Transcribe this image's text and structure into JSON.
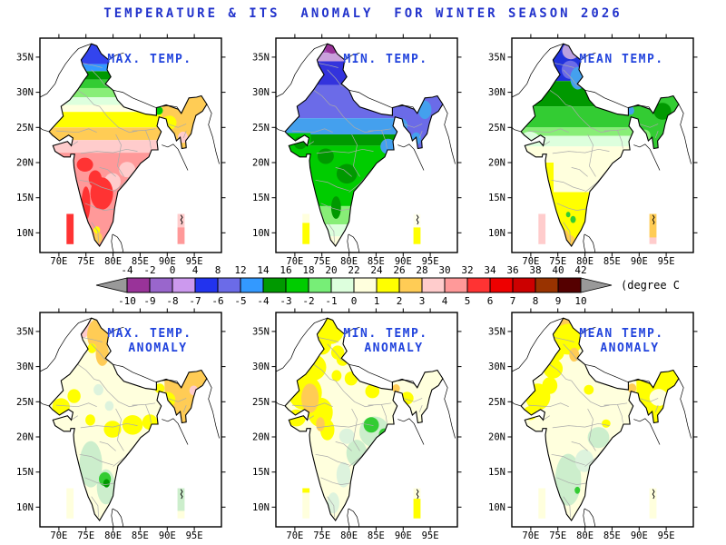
{
  "title": "TEMPERATURE & ITS  ANOMALY  FOR WINTER SEASON 2026",
  "colors": {
    "title_blue": "#2233CC",
    "panel_title_blue": "#2244DD",
    "outline_black": "#000000",
    "state_line_gray": "#AAAAAA",
    "arrow_gray": "#999999"
  },
  "axes": {
    "lon_tick_labels": [
      "70E",
      "75E",
      "80E",
      "85E",
      "90E",
      "95E"
    ],
    "lon_tick_values": [
      70,
      75,
      80,
      85,
      90,
      95
    ],
    "lat_tick_labels": [
      "10N",
      "15N",
      "20N",
      "25N",
      "30N",
      "35N"
    ],
    "lat_tick_values": [
      10,
      15,
      20,
      25,
      30,
      35
    ],
    "lon_range": [
      66.5,
      100.2
    ],
    "lat_range": [
      7.2,
      37.7
    ]
  },
  "colorbar": {
    "unit_label": "(degree C)",
    "temperature_scale_labels": [
      "-4",
      "-2",
      "0",
      "4",
      "8",
      "12",
      "14",
      "16",
      "18",
      "20",
      "22",
      "24",
      "26",
      "28",
      "30",
      "32",
      "34",
      "36",
      "38",
      "40",
      "42"
    ],
    "anomaly_scale_labels": [
      "-10",
      "-9",
      "-8",
      "-7",
      "-6",
      "-5",
      "-4",
      "-3",
      "-2",
      "-1",
      "0",
      "1",
      "2",
      "3",
      "4",
      "5",
      "6",
      "7",
      "8",
      "9",
      "10"
    ],
    "cell_colors": [
      "#993399",
      "#9966CC",
      "#CC99EE",
      "#2233EE",
      "#6B6BE8",
      "#3399FF",
      "#009900",
      "#00CC00",
      "#77EE77",
      "#DDFFDD",
      "#FFFFDD",
      "#FFFF00",
      "#FFCC55",
      "#FFCCCC",
      "#FF9999",
      "#FF3333",
      "#EE0000",
      "#CC0000",
      "#993300",
      "#550000"
    ]
  },
  "chart_data": {
    "type": "heatmap",
    "subtype": "india-temperature-map-grid",
    "grid": "2 rows x 3 columns",
    "shared_axes": {
      "x": "longitude 70E-95E step 5",
      "y": "latitude 10N-35N step 5"
    },
    "panels": [
      {
        "id": "max-temp",
        "title_lines": [
          "MAX. TEMP."
        ],
        "description": "Max temperature: blue/green over Himalayas, yellow-orange 23-28N, pink-red peninsula with red cores 14-20N",
        "bands": [
          [
            37.5,
            34.0,
            "#3344EE"
          ],
          [
            34.0,
            33.0,
            "#3399FF"
          ],
          [
            33.0,
            31.8,
            "#009900"
          ],
          [
            31.8,
            30.6,
            "#33CC33"
          ],
          [
            30.6,
            29.3,
            "#88EE77"
          ],
          [
            29.3,
            28.2,
            "#DDFFDD"
          ],
          [
            28.2,
            27.2,
            "#FFFFDD"
          ],
          [
            27.2,
            25.0,
            "#FFFF00"
          ],
          [
            25.0,
            23.2,
            "#FFCC55"
          ],
          [
            23.2,
            21.4,
            "#FFCCCC"
          ],
          [
            21.4,
            8.0,
            "#FF9999"
          ]
        ],
        "rects": [
          [
            89.0,
            97.5,
            29.6,
            21.8,
            "#FFCC55"
          ]
        ],
        "blobs": [
          [
            90.4,
            25.7,
            1.3,
            1.0,
            "#FFFF00"
          ],
          [
            92.9,
            23.6,
            0.9,
            0.8,
            "#FFCCCC"
          ],
          [
            88.4,
            27.4,
            0.8,
            0.6,
            "#00CC00"
          ],
          [
            79.9,
            17.3,
            1.5,
            1.2,
            "#FFCCCC"
          ],
          [
            82.6,
            19.0,
            1.5,
            1.1,
            "#FFCCCC"
          ],
          [
            77.9,
            15.6,
            2.1,
            2.3,
            "#FF3333"
          ],
          [
            76.7,
            17.7,
            1.2,
            1.2,
            "#FF3333"
          ],
          [
            74.8,
            19.7,
            1.5,
            1.0,
            "#FF3333"
          ],
          [
            75.0,
            14.2,
            0.8,
            2.4,
            "#FF3333"
          ],
          [
            77.2,
            9.3,
            0.8,
            0.8,
            "#FFCC55"
          ],
          [
            77.0,
            10.4,
            0.6,
            0.5,
            "#FFFF00"
          ]
        ],
        "left_bar": [
          [
            1.0,
            "#FF3333"
          ]
        ],
        "right_bar": [
          [
            0.45,
            "#FFCCCC"
          ],
          [
            0.55,
            "#FF9999"
          ]
        ]
      },
      {
        "id": "min-temp",
        "title_lines": [
          "MIN. TEMP."
        ],
        "description": "Min temperature: purple Kashmir, blue/periwinkle north plains, light blue central, greens over peninsula, pale tip",
        "bands": [
          [
            37.5,
            35.6,
            "#AA55BB"
          ],
          [
            35.6,
            34.4,
            "#C9A0DC"
          ],
          [
            34.4,
            31.0,
            "#3333DD"
          ],
          [
            31.0,
            26.3,
            "#6B6BE8"
          ],
          [
            26.3,
            24.0,
            "#44A0EE"
          ],
          [
            24.0,
            22.4,
            "#009900"
          ],
          [
            22.4,
            13.8,
            "#00CC00"
          ],
          [
            13.8,
            11.2,
            "#88EE77"
          ],
          [
            11.2,
            9.5,
            "#DDFFDD"
          ],
          [
            9.5,
            8.0,
            "#FFFFDD"
          ]
        ],
        "rects": [
          [
            89.0,
            97.5,
            29.6,
            21.8,
            "#6B6BE8"
          ],
          [
            66.5,
            72.9,
            24.2,
            20.3,
            "#00CC00"
          ]
        ],
        "blobs": [
          [
            76.9,
            36.4,
            1.3,
            0.9,
            "#993399"
          ],
          [
            71.0,
            22.8,
            1.2,
            0.9,
            "#009900"
          ],
          [
            79.6,
            18.4,
            1.9,
            1.4,
            "#009900"
          ],
          [
            75.7,
            20.9,
            1.5,
            1.1,
            "#009900"
          ],
          [
            77.6,
            13.6,
            0.9,
            1.6,
            "#009900"
          ],
          [
            87.2,
            22.3,
            1.4,
            1.1,
            "#44A0EE"
          ],
          [
            89.6,
            25.3,
            1.2,
            1.0,
            "#44A0EE"
          ],
          [
            92.4,
            23.4,
            0.9,
            0.9,
            "#44A0EE"
          ],
          [
            94.0,
            27.5,
            1.2,
            1.3,
            "#44A0EE"
          ]
        ],
        "left_bar": [
          [
            0.3,
            "#FFFFDD"
          ],
          [
            0.7,
            "#FFFF00"
          ]
        ],
        "right_bar": [
          [
            0.45,
            "#FFFFEE"
          ],
          [
            0.55,
            "#FFFF00"
          ]
        ]
      },
      {
        "id": "mean-temp",
        "title_lines": [
          "MEAN TEMP."
        ],
        "description": "Mean temperature: blue Kashmir, dark green 28-31N, green band, cream 16-22N, yellow south, orange tip",
        "bands": [
          [
            37.5,
            31.6,
            "#2233DD"
          ],
          [
            31.6,
            28.0,
            "#009900"
          ],
          [
            28.0,
            25.0,
            "#33CC33"
          ],
          [
            25.0,
            23.8,
            "#88EE77"
          ],
          [
            23.8,
            22.3,
            "#DDFFDD"
          ],
          [
            22.3,
            15.8,
            "#FFFFDD"
          ],
          [
            15.8,
            8.0,
            "#FFFF00"
          ]
        ],
        "rects": [
          [
            89.0,
            97.5,
            29.6,
            21.8,
            "#33CC33"
          ],
          [
            72.6,
            74.2,
            20.0,
            13.8,
            "#FFFF00"
          ]
        ],
        "blobs": [
          [
            77.4,
            35.9,
            1.6,
            1.2,
            "#BBA0E0"
          ],
          [
            77.3,
            33.2,
            1.6,
            1.3,
            "#6B6BE8"
          ],
          [
            78.7,
            32.0,
            1.4,
            1.6,
            "#44A0EE"
          ],
          [
            94.3,
            27.3,
            1.6,
            1.2,
            "#009900"
          ],
          [
            91.0,
            23.8,
            1.1,
            0.9,
            "#88EE77"
          ],
          [
            88.4,
            27.4,
            0.7,
            0.6,
            "#44A0EE"
          ],
          [
            69.8,
            23.4,
            1.8,
            1.0,
            "#DDFFDD"
          ],
          [
            77.1,
            8.8,
            1.1,
            0.9,
            "#FFCC55"
          ],
          [
            76.4,
            9.8,
            0.6,
            0.6,
            "#FFCC55"
          ],
          [
            77.8,
            11.9,
            0.5,
            0.5,
            "#33CC33"
          ],
          [
            76.9,
            12.6,
            0.4,
            0.4,
            "#33CC33"
          ]
        ],
        "left_bar": [
          [
            1.0,
            "#FFCCCC"
          ]
        ],
        "right_bar": [
          [
            0.78,
            "#FFCC55"
          ],
          [
            0.22,
            "#FFCCCC"
          ]
        ]
      },
      {
        "id": "max-temp-anomaly",
        "title_lines": [
          "MAX. TEMP.",
          "ANOMALY"
        ],
        "description": "Max temp anomaly: cream base, pink/orange over Kashmir and northeast, scattered yellow patches, pale green south with green core",
        "bands": [
          [
            37.5,
            8.0,
            "#FFFFDD"
          ]
        ],
        "rects": [
          [
            89.5,
            97.5,
            29.6,
            22.0,
            "#FFCC55"
          ]
        ],
        "blobs": [
          [
            74.2,
            35.7,
            2.0,
            1.6,
            "#FFCCCC"
          ],
          [
            77.4,
            34.5,
            2.2,
            2.4,
            "#FFCC55"
          ],
          [
            78.0,
            31.8,
            1.2,
            1.7,
            "#FFCC55"
          ],
          [
            79.3,
            35.9,
            1.1,
            0.9,
            "#FFFF00"
          ],
          [
            76.1,
            32.6,
            0.8,
            0.7,
            "#FFFF00"
          ],
          [
            90.0,
            25.3,
            1.5,
            1.1,
            "#FFFF00"
          ],
          [
            88.6,
            26.9,
            0.9,
            0.7,
            "#FFFF00"
          ],
          [
            94.9,
            26.6,
            0.8,
            0.7,
            "#FFCCCC"
          ],
          [
            70.4,
            24.3,
            1.6,
            1.2,
            "#FFFF00"
          ],
          [
            72.8,
            25.8,
            1.2,
            1.0,
            "#FFFF00"
          ],
          [
            75.8,
            22.4,
            0.9,
            0.8,
            "#FFFF00"
          ],
          [
            79.9,
            21.1,
            1.6,
            1.2,
            "#FFFF00"
          ],
          [
            83.6,
            21.7,
            1.9,
            1.4,
            "#FFFF00"
          ],
          [
            86.8,
            22.1,
            1.4,
            1.1,
            "#FFFF00"
          ],
          [
            75.9,
            16.1,
            2.1,
            3.3,
            "#CCEECC"
          ],
          [
            78.7,
            12.9,
            1.7,
            2.5,
            "#CCEECC"
          ],
          [
            74.0,
            11.2,
            1.1,
            1.7,
            "#CCEECC"
          ],
          [
            77.3,
            26.7,
            0.9,
            0.8,
            "#DDF3DD"
          ],
          [
            79.3,
            24.4,
            0.8,
            0.7,
            "#DDF3DD"
          ],
          [
            78.5,
            14.0,
            1.1,
            1.0,
            "#33CC33"
          ],
          [
            78.8,
            13.4,
            0.6,
            0.6,
            "#009900"
          ]
        ],
        "left_bar": [
          [
            1.0,
            "#FFFFDD"
          ]
        ],
        "right_bar": [
          [
            0.75,
            "#CCEECC"
          ],
          [
            0.25,
            "#FFFFDD"
          ]
        ]
      },
      {
        "id": "min-temp-anomaly",
        "title_lines": [
          "MIN. TEMP.",
          "ANOMALY"
        ],
        "description": "Min temp anomaly: cream base, yellow Kashmir and west/northwest with orange Rajasthan core, green spots east, pale green southeast",
        "bands": [
          [
            37.5,
            8.0,
            "#FFFFDD"
          ]
        ],
        "rects": [],
        "blobs": [
          [
            76.6,
            35.3,
            2.5,
            2.1,
            "#FFFF00"
          ],
          [
            75.1,
            33.1,
            1.6,
            1.4,
            "#FFFF00"
          ],
          [
            77.9,
            32.0,
            1.2,
            1.0,
            "#FFFF00"
          ],
          [
            73.3,
            29.9,
            2.5,
            1.9,
            "#FFFF00"
          ],
          [
            71.9,
            26.3,
            3.1,
            2.5,
            "#FFFF00"
          ],
          [
            74.7,
            23.5,
            2.3,
            2.1,
            "#FFFF00"
          ],
          [
            70.3,
            22.7,
            1.7,
            1.2,
            "#FFFF00"
          ],
          [
            76.0,
            21.0,
            1.3,
            1.5,
            "#FFFF00"
          ],
          [
            72.8,
            25.5,
            1.6,
            2.1,
            "#FFCC55"
          ],
          [
            74.7,
            21.8,
            0.8,
            1.0,
            "#FFCC55"
          ],
          [
            78.8,
            31.0,
            1.1,
            0.9,
            "#FFFF00"
          ],
          [
            80.4,
            28.3,
            1.2,
            1.0,
            "#FFFF00"
          ],
          [
            84.3,
            26.5,
            1.3,
            1.0,
            "#FFFF00"
          ],
          [
            77.7,
            28.7,
            0.9,
            0.8,
            "#FFFF00"
          ],
          [
            90.7,
            25.5,
            1.2,
            0.9,
            "#FFFF00"
          ],
          [
            88.7,
            26.9,
            0.7,
            0.6,
            "#FFCC55"
          ],
          [
            84.7,
            20.7,
            2.8,
            2.2,
            "#CCEECC"
          ],
          [
            81.4,
            17.7,
            1.9,
            1.9,
            "#CCEECC"
          ],
          [
            79.0,
            14.6,
            1.3,
            1.8,
            "#DDF3DD"
          ],
          [
            77.1,
            10.6,
            1.1,
            1.5,
            "#DDF3DD"
          ],
          [
            79.6,
            20.1,
            1.4,
            1.1,
            "#DDF3DD"
          ],
          [
            84.1,
            21.7,
            1.4,
            1.1,
            "#33CC33"
          ],
          [
            86.5,
            20.3,
            1.0,
            0.9,
            "#33CC33"
          ]
        ],
        "left_bar": [
          [
            0.15,
            "#FFFF00"
          ],
          [
            0.85,
            "#FFFFDD"
          ]
        ],
        "right_bar": [
          [
            0.35,
            "#FFFFDD"
          ],
          [
            0.65,
            "#FFFF00"
          ]
        ]
      },
      {
        "id": "mean-temp-anomaly",
        "title_lines": [
          "MEAN TEMP.",
          "ANOMALY"
        ],
        "description": "Mean temp anomaly: cream base, orange/yellow Kashmir, yellow west patches and northeast, pale green peninsula interior",
        "bands": [
          [
            37.5,
            8.0,
            "#FFFFDD"
          ]
        ],
        "rects": [
          [
            89.5,
            97.5,
            29.6,
            22.0,
            "#FFFF00"
          ]
        ],
        "blobs": [
          [
            75.9,
            35.9,
            1.8,
            1.4,
            "#FFCC55"
          ],
          [
            76.9,
            33.9,
            2.8,
            2.2,
            "#FFFF00"
          ],
          [
            74.6,
            32.1,
            1.6,
            1.3,
            "#FFFF00"
          ],
          [
            78.0,
            31.7,
            0.9,
            1.0,
            "#FFCC55"
          ],
          [
            71.3,
            25.7,
            2.3,
            1.9,
            "#FFFF00"
          ],
          [
            74.1,
            29.7,
            1.8,
            1.4,
            "#FFFF00"
          ],
          [
            69.9,
            23.4,
            1.3,
            1.0,
            "#FFFF00"
          ],
          [
            73.5,
            27.3,
            1.4,
            1.2,
            "#FFFF00"
          ],
          [
            93.6,
            25.6,
            1.7,
            1.2,
            "#FFFFDD"
          ],
          [
            88.7,
            26.9,
            0.8,
            0.7,
            "#FFCC55"
          ],
          [
            80.7,
            26.7,
            0.9,
            0.7,
            "#FFFF00"
          ],
          [
            83.9,
            21.9,
            0.8,
            0.6,
            "#FFFF00"
          ],
          [
            76.9,
            13.9,
            2.4,
            3.7,
            "#CCEECC"
          ],
          [
            82.5,
            19.9,
            2.0,
            1.5,
            "#CCEECC"
          ],
          [
            79.9,
            16.6,
            1.7,
            1.6,
            "#DDF3DD"
          ],
          [
            78.6,
            12.4,
            0.5,
            0.5,
            "#33CC33"
          ]
        ],
        "left_bar": [
          [
            1.0,
            "#FFFFDD"
          ]
        ],
        "right_bar": [
          [
            1.0,
            "#FFFFDD"
          ]
        ]
      }
    ]
  }
}
